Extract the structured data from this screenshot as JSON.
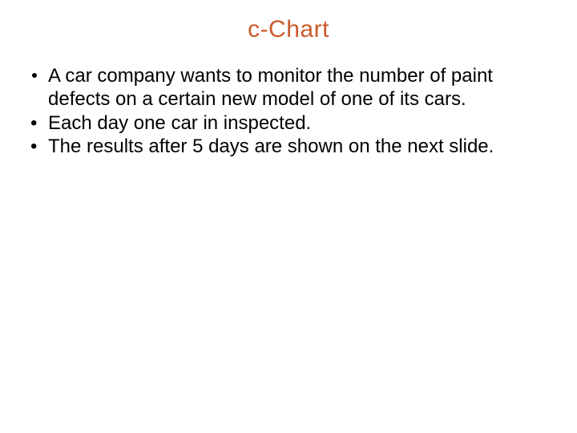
{
  "title": {
    "text": "c-Chart",
    "color": "#cc5a2b",
    "fontsize": 30
  },
  "body": {
    "fontsize": 24,
    "color": "#000000",
    "items": [
      {
        "marker": "dot",
        "text": "A car company wants to monitor the number of paint defects on a certain new model of one of its cars."
      },
      {
        "marker": "•",
        "text": "Each day one car in inspected."
      },
      {
        "marker": "•",
        "text": "The results after 5 days are shown on the next slide."
      }
    ]
  },
  "background_color": "#ffffff"
}
